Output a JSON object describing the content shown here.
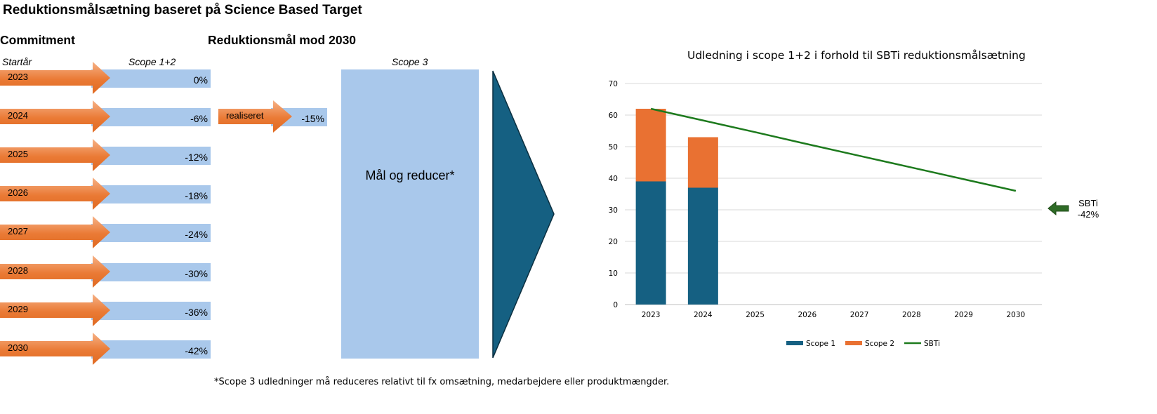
{
  "title": "Reduktionsmålsætning baseret på Science Based Target",
  "commitment": {
    "heading": "Commitment",
    "col_startyear": "Startår",
    "col_scope12": "Scope 1+2",
    "rows": [
      {
        "year": "2023",
        "pct": "0%"
      },
      {
        "year": "2024",
        "pct": "-6%"
      },
      {
        "year": "2025",
        "pct": "-12%"
      },
      {
        "year": "2026",
        "pct": "-18%"
      },
      {
        "year": "2027",
        "pct": "-24%"
      },
      {
        "year": "2028",
        "pct": "-30%"
      },
      {
        "year": "2029",
        "pct": "-36%"
      },
      {
        "year": "2030",
        "pct": "-42%"
      }
    ]
  },
  "target2030": {
    "heading": "Reduktionsmål mod 2030",
    "realized_label": "realiseret",
    "realized_pct": "-15%",
    "scope3_head": "Scope 3",
    "scope3_text": "Mål og reducer*"
  },
  "footnote": "*Scope 3 udledninger må reduceres relativt til fx omsætning, medarbejdere eller produktmængder.",
  "colors": {
    "arrow_orange": "#e8762f",
    "arrow_orange_light": "#f4a46e",
    "bar_blue": "#a9c8eb",
    "triangle": "#156082",
    "scope1": "#156082",
    "scope2": "#e97132",
    "sbti": "#1d7a1d",
    "sbti_arrow": "#2e6b26"
  },
  "sbti_marker": {
    "line1": "SBTi",
    "line2": "-42%"
  },
  "chart_data": {
    "type": "bar",
    "title": "Udledning i scope 1+2 i forhold til SBTi reduktionsmålsætning",
    "categories": [
      "2023",
      "2024",
      "2025",
      "2026",
      "2027",
      "2028",
      "2029",
      "2030"
    ],
    "ylim": [
      0,
      70
    ],
    "yticks": [
      "0",
      "10",
      "20",
      "30",
      "40",
      "50",
      "60",
      "70"
    ],
    "stacked": true,
    "grid": true,
    "legend_position": "bottom",
    "series": [
      {
        "name": "Scope 1",
        "kind": "bar",
        "values": [
          39,
          37,
          null,
          null,
          null,
          null,
          null,
          null
        ]
      },
      {
        "name": "Scope 2",
        "kind": "bar",
        "values": [
          23,
          16,
          null,
          null,
          null,
          null,
          null,
          null
        ]
      },
      {
        "name": "SBTi",
        "kind": "line",
        "values": [
          62,
          58.3,
          54.6,
          50.8,
          47.1,
          43.4,
          39.7,
          36
        ]
      }
    ]
  }
}
